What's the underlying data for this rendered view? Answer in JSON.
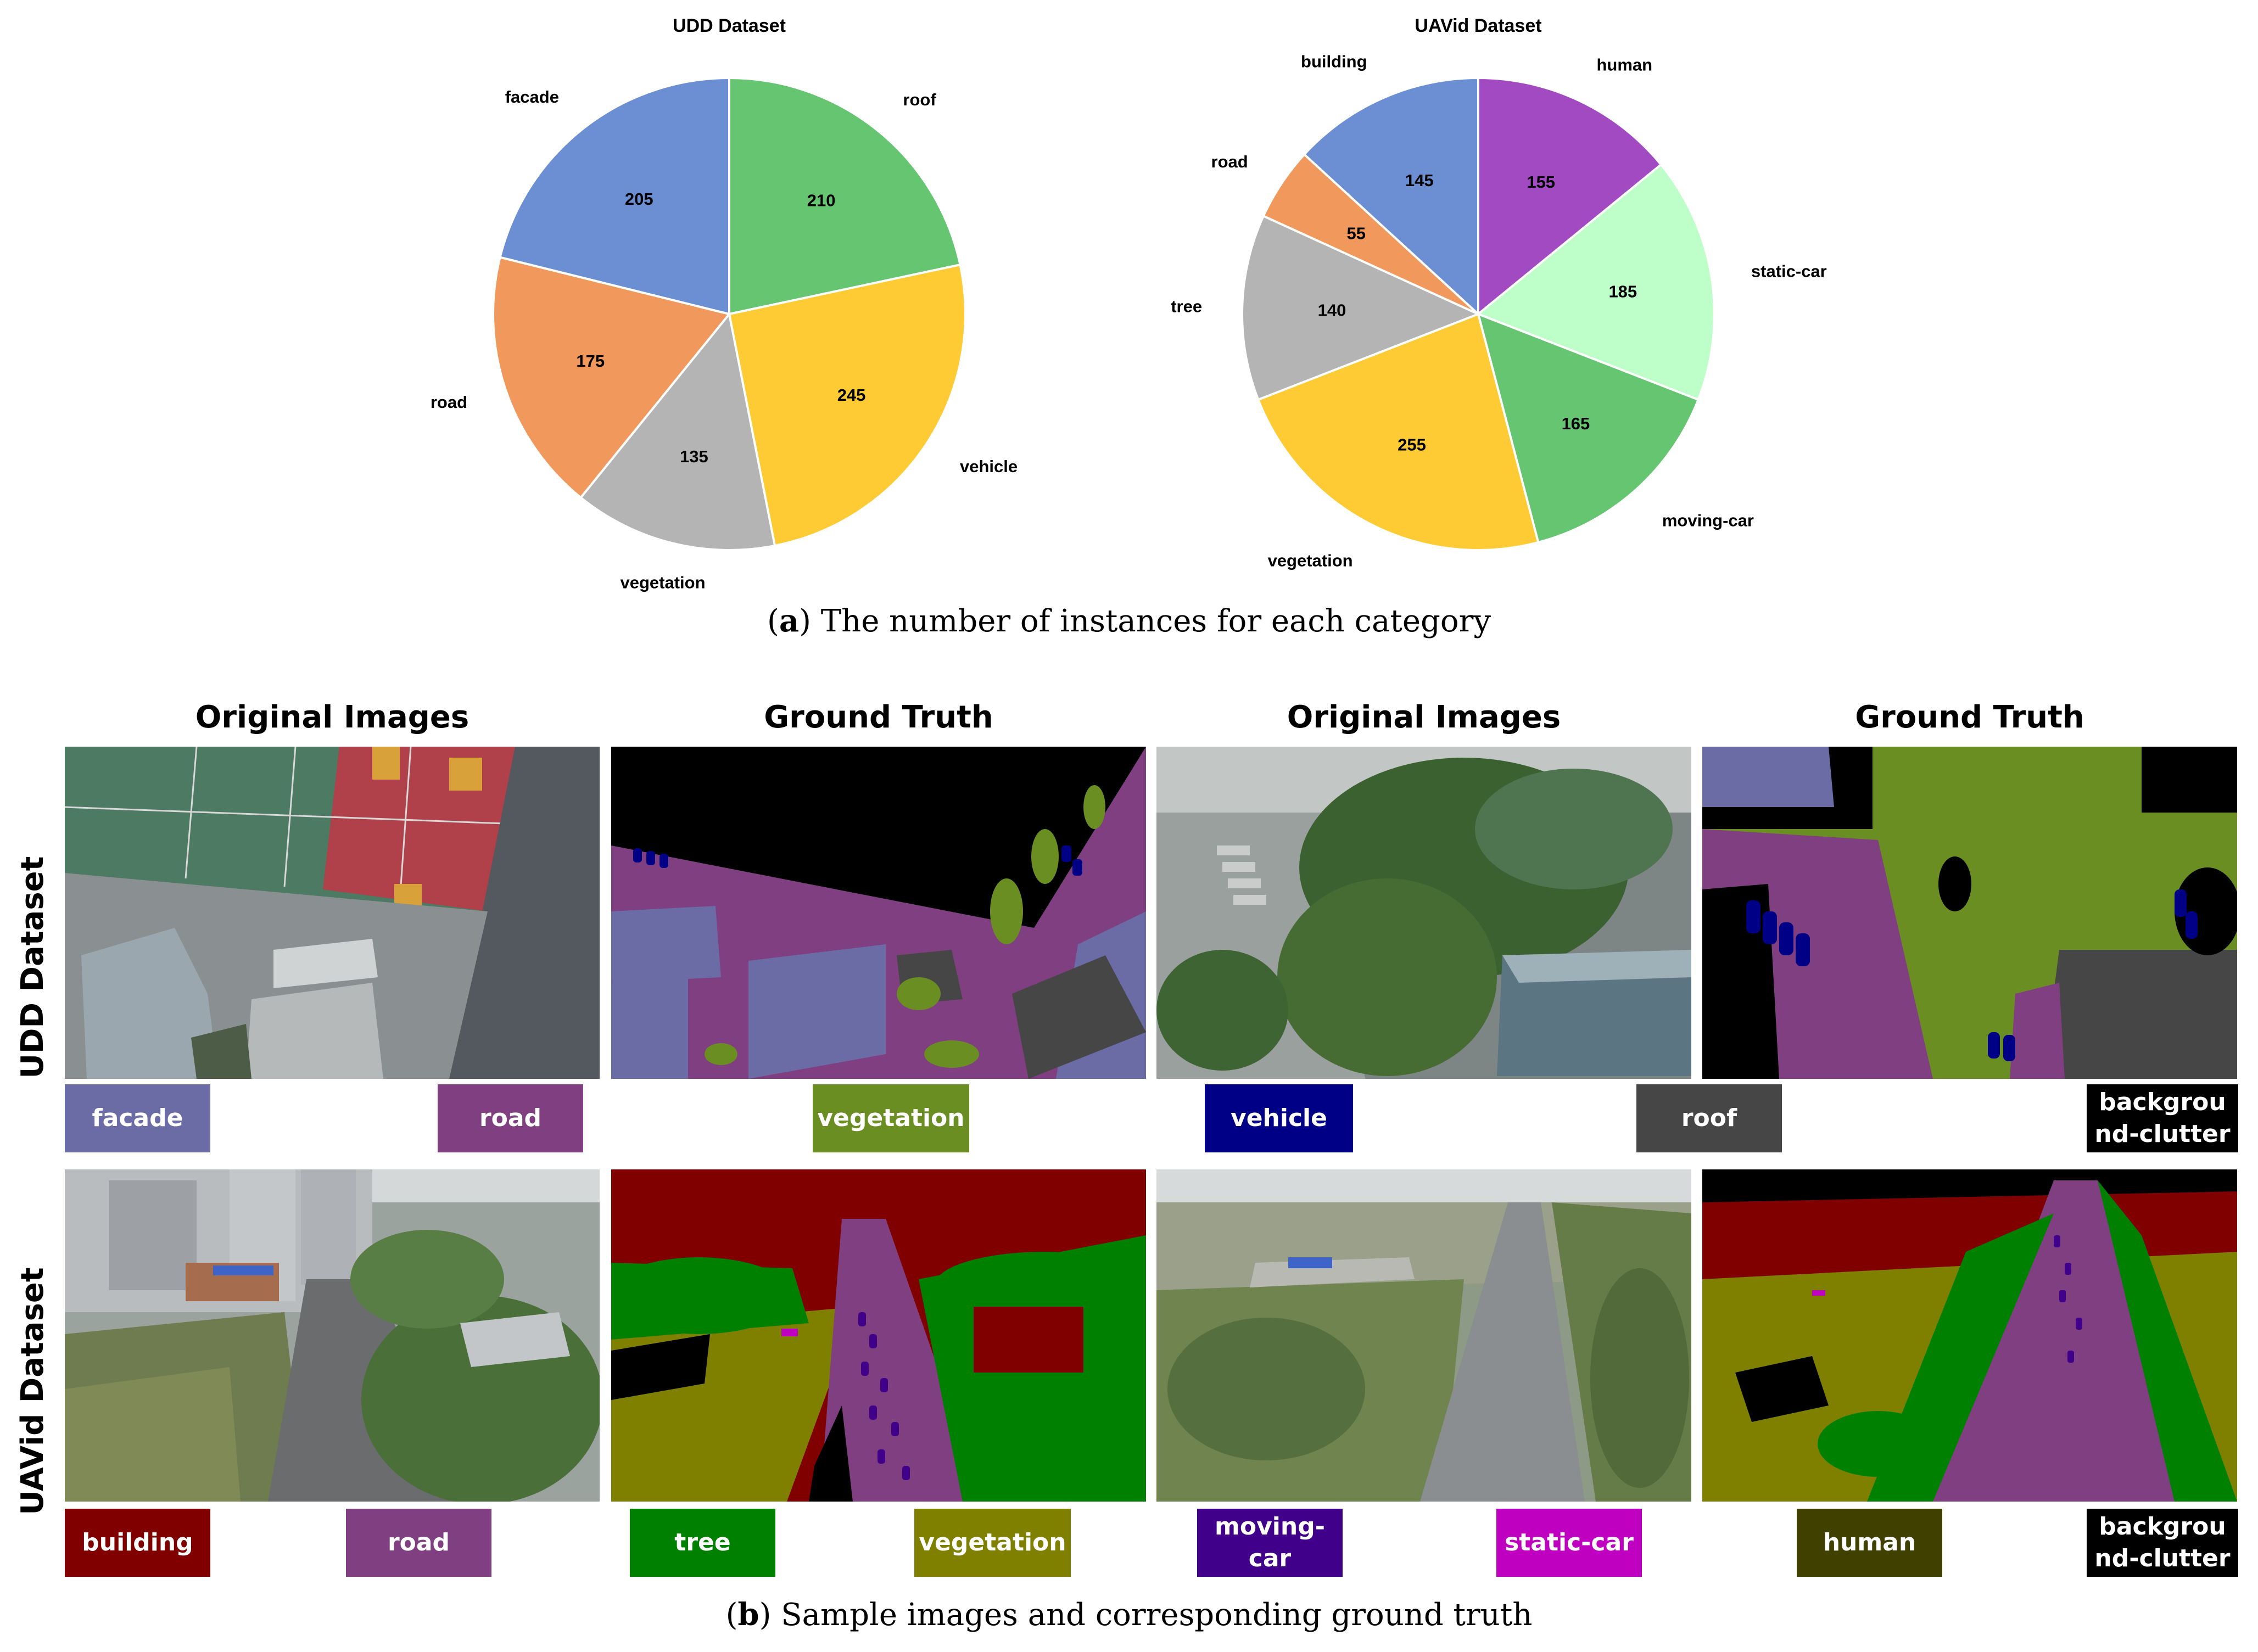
{
  "chart_data": [
    {
      "type": "pie",
      "title": "UDD Dataset",
      "slices": [
        {
          "label": "roof",
          "value": 210,
          "color": "#66c570"
        },
        {
          "label": "vehicle",
          "value": 245,
          "color": "#fecb34"
        },
        {
          "label": "vegetation",
          "value": 135,
          "color": "#b4b4b4"
        },
        {
          "label": "road",
          "value": 175,
          "color": "#f1995c"
        },
        {
          "label": "facade",
          "value": 205,
          "color": "#6c8ed3"
        }
      ],
      "start": "12 o'clock, clockwise",
      "legend": "labels outside slices"
    },
    {
      "type": "pie",
      "title": "UAVid Dataset",
      "slices": [
        {
          "label": "human",
          "value": 155,
          "color": "#a24ac1"
        },
        {
          "label": "static-car",
          "value": 185,
          "color": "#bdfec9"
        },
        {
          "label": "moving-car",
          "value": 165,
          "color": "#66c570"
        },
        {
          "label": "vegetation",
          "value": 255,
          "color": "#fecb34"
        },
        {
          "label": "tree",
          "value": 140,
          "color": "#b4b4b4"
        },
        {
          "label": "road",
          "value": 55,
          "color": "#f1995c"
        },
        {
          "label": "building",
          "value": 145,
          "color": "#6c8ed3"
        }
      ],
      "start": "12 o'clock, clockwise",
      "legend": "labels outside slices"
    }
  ],
  "captions": {
    "a_letter": "a",
    "a_text": "The number of instances for each category",
    "b_letter": "b",
    "b_text": "Sample images and corresponding ground truth"
  },
  "grid": {
    "col_headers": [
      "Original Images",
      "Ground Truth",
      "Original Images",
      "Ground Truth"
    ],
    "row_labels": [
      "UDD Dataset",
      "UAVid Dataset"
    ],
    "udd_swatches": [
      {
        "label": "facade",
        "color": "#6b6ba5"
      },
      {
        "label": "road",
        "color": "#7f3f80"
      },
      {
        "label": "vegetation",
        "color": "#6a8e22"
      },
      {
        "label": "vehicle",
        "color": "#000087"
      },
      {
        "label": "roof",
        "color": "#464646"
      },
      {
        "label": "backgrou\nnd-clutter",
        "color": "#000000"
      }
    ],
    "uavid_swatches": [
      {
        "label": "building",
        "color": "#800000"
      },
      {
        "label": "road",
        "color": "#7f3f80"
      },
      {
        "label": "tree",
        "color": "#008000"
      },
      {
        "label": "vegetation",
        "color": "#808000"
      },
      {
        "label": "moving-\ncar",
        "color": "#40008a"
      },
      {
        "label": "static-car",
        "color": "#c000c0"
      },
      {
        "label": "human",
        "color": "#404000"
      },
      {
        "label": "backgrou\nnd-clutter",
        "color": "#000000"
      }
    ]
  }
}
